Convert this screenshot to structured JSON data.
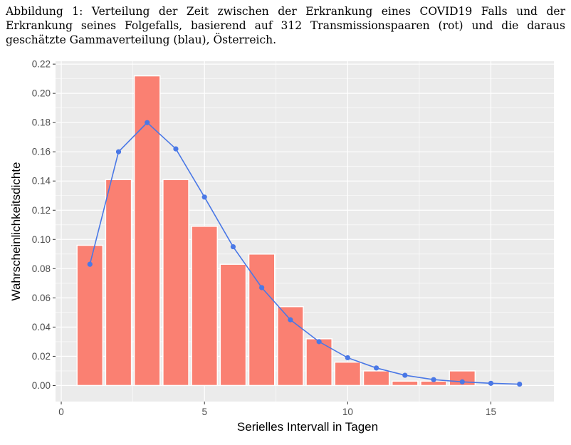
{
  "caption": "Abbildung 1: Verteilung der Zeit zwischen der Erkrankung eines COVID19 Falls und der Erkrankung seines Folgefalls, basierend auf 312 Transmissionspaaren (rot) und die daraus geschätzte Gammaverteilung (blau), Österreich.",
  "colors": {
    "bar": "#FA8072",
    "line": "#4A78E6",
    "panel": "#EBEBEB",
    "grid": "#FFFFFF"
  },
  "chart_data": {
    "type": "bar",
    "xlabel": "Serielles Intervall in Tagen",
    "ylabel": "Wahrscheinlichkeitsdichte",
    "xlim": [
      -0.2,
      17.2
    ],
    "ylim": [
      -0.011,
      0.222
    ],
    "x_ticks": [
      0,
      5,
      10,
      15
    ],
    "y_ticks": [
      0.0,
      0.02,
      0.04,
      0.06,
      0.08,
      0.1,
      0.12,
      0.14,
      0.16,
      0.18,
      0.2,
      0.22
    ],
    "y_tick_labels": [
      "0.00",
      "0.02",
      "0.04",
      "0.06",
      "0.08",
      "0.10",
      "0.12",
      "0.14",
      "0.16",
      "0.18",
      "0.20",
      "0.22"
    ],
    "grid": true,
    "series": [
      {
        "type": "bar",
        "x": [
          1,
          2,
          3,
          4,
          5,
          6,
          7,
          8,
          9,
          10,
          11,
          12,
          13,
          14
        ],
        "values": [
          0.096,
          0.141,
          0.212,
          0.141,
          0.109,
          0.083,
          0.09,
          0.054,
          0.032,
          0.016,
          0.01,
          0.003,
          0.003,
          0.01
        ]
      },
      {
        "type": "line",
        "x": [
          1,
          2,
          3,
          4,
          5,
          6,
          7,
          8,
          9,
          10,
          11,
          12,
          13,
          14,
          15,
          16
        ],
        "values": [
          0.083,
          0.16,
          0.18,
          0.162,
          0.129,
          0.095,
          0.067,
          0.045,
          0.03,
          0.019,
          0.012,
          0.007,
          0.004,
          0.0025,
          0.0015,
          0.0009
        ]
      }
    ]
  }
}
